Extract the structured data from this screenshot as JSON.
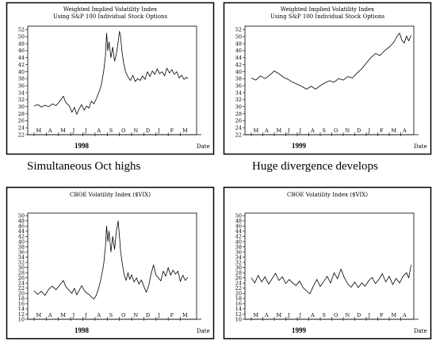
{
  "captions": {
    "left": "Simultaneous Oct highs",
    "right": "Huge divergence develops"
  },
  "chart_data": [
    {
      "type": "line",
      "title": "Weighted Implied Volatility Index",
      "subtitle": "Using S&P 100 Individual Stock Options",
      "year_label": "1998",
      "xlabel": "Date",
      "categories": [
        "M",
        "A",
        "M",
        "J",
        "J",
        "A",
        "S",
        "O",
        "N",
        "D",
        "J",
        "F",
        "M"
      ],
      "ylim": [
        22,
        53
      ],
      "yticks": [
        22,
        24,
        26,
        28,
        30,
        32,
        34,
        36,
        38,
        40,
        42,
        44,
        46,
        48,
        50,
        52
      ],
      "series": [
        {
          "values": [
            [
              0.0,
              30.2
            ],
            [
              0.3,
              30.6
            ],
            [
              0.6,
              29.9
            ],
            [
              0.9,
              30.4
            ],
            [
              1.2,
              30.0
            ],
            [
              1.5,
              30.8
            ],
            [
              1.8,
              30.3
            ],
            [
              2.1,
              31.5
            ],
            [
              2.4,
              33.0
            ],
            [
              2.6,
              31.2
            ],
            [
              2.9,
              30.2
            ],
            [
              3.1,
              28.4
            ],
            [
              3.3,
              29.8
            ],
            [
              3.5,
              27.8
            ],
            [
              3.7,
              29.4
            ],
            [
              3.9,
              30.6
            ],
            [
              4.1,
              29.0
            ],
            [
              4.3,
              30.2
            ],
            [
              4.5,
              29.6
            ],
            [
              4.7,
              31.6
            ],
            [
              4.9,
              30.8
            ],
            [
              5.1,
              32.2
            ],
            [
              5.3,
              34.0
            ],
            [
              5.5,
              36.0
            ],
            [
              5.7,
              40.0
            ],
            [
              5.85,
              44.5
            ],
            [
              5.95,
              51.0
            ],
            [
              6.05,
              46.0
            ],
            [
              6.15,
              48.5
            ],
            [
              6.3,
              44.0
            ],
            [
              6.45,
              47.0
            ],
            [
              6.6,
              43.0
            ],
            [
              6.75,
              45.0
            ],
            [
              6.9,
              48.5
            ],
            [
              7.0,
              51.5
            ],
            [
              7.1,
              50.0
            ],
            [
              7.2,
              46.0
            ],
            [
              7.35,
              42.5
            ],
            [
              7.5,
              40.0
            ],
            [
              7.7,
              38.5
            ],
            [
              7.9,
              37.5
            ],
            [
              8.1,
              39.0
            ],
            [
              8.3,
              37.2
            ],
            [
              8.5,
              38.0
            ],
            [
              8.7,
              37.5
            ],
            [
              8.9,
              38.8
            ],
            [
              9.1,
              37.8
            ],
            [
              9.3,
              40.0
            ],
            [
              9.5,
              38.6
            ],
            [
              9.7,
              40.2
            ],
            [
              9.9,
              39.2
            ],
            [
              10.1,
              40.8
            ],
            [
              10.3,
              39.4
            ],
            [
              10.5,
              40.0
            ],
            [
              10.7,
              38.8
            ],
            [
              10.9,
              41.0
            ],
            [
              11.1,
              39.6
            ],
            [
              11.3,
              40.6
            ],
            [
              11.5,
              39.2
            ],
            [
              11.7,
              40.0
            ],
            [
              11.9,
              38.2
            ],
            [
              12.1,
              39.0
            ],
            [
              12.3,
              37.8
            ],
            [
              12.5,
              38.4
            ],
            [
              12.6,
              38.0
            ]
          ]
        }
      ]
    },
    {
      "type": "line",
      "title": "Weighted Implied Volatility Index",
      "subtitle": "Using S&P 100 Individual Stock Options",
      "year_label": "1999",
      "xlabel": "Date",
      "categories": [
        "M",
        "A",
        "M",
        "J",
        "J",
        "A",
        "S",
        "O",
        "N",
        "D",
        "J",
        "F",
        "M",
        "A"
      ],
      "ylim": [
        22,
        53
      ],
      "yticks": [
        22,
        24,
        26,
        28,
        30,
        32,
        34,
        36,
        38,
        40,
        42,
        44,
        46,
        48,
        50,
        52
      ],
      "series": [
        {
          "values": [
            [
              0.0,
              38.2
            ],
            [
              0.4,
              37.6
            ],
            [
              0.8,
              38.8
            ],
            [
              1.2,
              38.0
            ],
            [
              1.6,
              39.0
            ],
            [
              2.0,
              40.2
            ],
            [
              2.4,
              39.4
            ],
            [
              2.8,
              38.4
            ],
            [
              3.2,
              37.8
            ],
            [
              3.6,
              37.0
            ],
            [
              4.0,
              36.4
            ],
            [
              4.4,
              35.8
            ],
            [
              4.8,
              35.0
            ],
            [
              5.2,
              35.8
            ],
            [
              5.6,
              35.0
            ],
            [
              6.0,
              36.0
            ],
            [
              6.4,
              36.8
            ],
            [
              6.8,
              37.4
            ],
            [
              7.2,
              37.0
            ],
            [
              7.6,
              38.0
            ],
            [
              8.0,
              37.6
            ],
            [
              8.4,
              38.6
            ],
            [
              8.8,
              38.2
            ],
            [
              9.2,
              39.6
            ],
            [
              9.6,
              40.8
            ],
            [
              10.0,
              42.4
            ],
            [
              10.4,
              44.0
            ],
            [
              10.8,
              45.2
            ],
            [
              11.2,
              44.6
            ],
            [
              11.6,
              46.0
            ],
            [
              12.0,
              47.0
            ],
            [
              12.4,
              48.4
            ],
            [
              12.7,
              50.2
            ],
            [
              12.9,
              51.0
            ],
            [
              13.1,
              49.0
            ],
            [
              13.3,
              48.2
            ],
            [
              13.5,
              50.2
            ],
            [
              13.7,
              48.8
            ],
            [
              13.9,
              50.4
            ]
          ]
        }
      ]
    },
    {
      "type": "line",
      "title": "CBOE Volatility Index ($VIX)",
      "year_label": "1998",
      "xlabel": "Date",
      "categories": [
        "M",
        "A",
        "M",
        "J",
        "J",
        "A",
        "S",
        "O",
        "N",
        "D",
        "J",
        "F",
        "M"
      ],
      "ylim": [
        10,
        51
      ],
      "yticks": [
        10,
        12,
        14,
        16,
        18,
        20,
        22,
        24,
        26,
        28,
        30,
        32,
        34,
        36,
        38,
        40,
        42,
        44,
        46,
        48,
        50
      ],
      "series": [
        {
          "values": [
            [
              0.0,
              21.0
            ],
            [
              0.3,
              19.6
            ],
            [
              0.6,
              20.8
            ],
            [
              0.9,
              19.2
            ],
            [
              1.2,
              21.6
            ],
            [
              1.5,
              22.8
            ],
            [
              1.8,
              21.4
            ],
            [
              2.1,
              23.2
            ],
            [
              2.4,
              25.0
            ],
            [
              2.6,
              22.6
            ],
            [
              2.9,
              21.0
            ],
            [
              3.1,
              20.0
            ],
            [
              3.3,
              22.0
            ],
            [
              3.5,
              19.4
            ],
            [
              3.7,
              21.2
            ],
            [
              3.9,
              23.0
            ],
            [
              4.1,
              21.2
            ],
            [
              4.3,
              20.2
            ],
            [
              4.5,
              19.6
            ],
            [
              4.7,
              18.6
            ],
            [
              4.9,
              17.8
            ],
            [
              5.1,
              19.2
            ],
            [
              5.3,
              22.0
            ],
            [
              5.5,
              26.0
            ],
            [
              5.7,
              31.0
            ],
            [
              5.85,
              38.0
            ],
            [
              5.95,
              46.0
            ],
            [
              6.05,
              40.0
            ],
            [
              6.15,
              44.0
            ],
            [
              6.3,
              36.0
            ],
            [
              6.45,
              42.0
            ],
            [
              6.6,
              37.0
            ],
            [
              6.75,
              44.0
            ],
            [
              6.9,
              48.0
            ],
            [
              7.0,
              42.0
            ],
            [
              7.1,
              36.0
            ],
            [
              7.25,
              31.0
            ],
            [
              7.4,
              27.0
            ],
            [
              7.55,
              25.0
            ],
            [
              7.7,
              28.0
            ],
            [
              7.85,
              25.4
            ],
            [
              8.0,
              27.2
            ],
            [
              8.2,
              24.4
            ],
            [
              8.4,
              26.0
            ],
            [
              8.6,
              23.6
            ],
            [
              8.8,
              25.2
            ],
            [
              9.0,
              22.8
            ],
            [
              9.2,
              20.4
            ],
            [
              9.4,
              23.0
            ],
            [
              9.6,
              27.6
            ],
            [
              9.8,
              31.0
            ],
            [
              10.0,
              27.0
            ],
            [
              10.2,
              26.0
            ],
            [
              10.4,
              24.8
            ],
            [
              10.6,
              28.6
            ],
            [
              10.8,
              26.6
            ],
            [
              11.0,
              30.0
            ],
            [
              11.2,
              27.0
            ],
            [
              11.4,
              29.0
            ],
            [
              11.6,
              27.4
            ],
            [
              11.8,
              28.6
            ],
            [
              12.0,
              24.6
            ],
            [
              12.2,
              27.0
            ],
            [
              12.4,
              25.0
            ],
            [
              12.6,
              26.2
            ]
          ]
        }
      ]
    },
    {
      "type": "line",
      "title": "CBOE Volatility Index ($VIX)",
      "year_label": "1999",
      "xlabel": "Date",
      "categories": [
        "M",
        "A",
        "M",
        "J",
        "J",
        "A",
        "S",
        "O",
        "N",
        "D",
        "J",
        "F",
        "M",
        "A"
      ],
      "ylim": [
        10,
        51
      ],
      "yticks": [
        10,
        12,
        14,
        16,
        18,
        20,
        22,
        24,
        26,
        28,
        30,
        32,
        34,
        36,
        38,
        40,
        42,
        44,
        46,
        48,
        50
      ],
      "series": [
        {
          "values": [
            [
              0.0,
              26.0
            ],
            [
              0.3,
              24.0
            ],
            [
              0.6,
              27.0
            ],
            [
              0.9,
              24.4
            ],
            [
              1.2,
              26.4
            ],
            [
              1.5,
              23.6
            ],
            [
              1.8,
              25.6
            ],
            [
              2.1,
              27.8
            ],
            [
              2.4,
              25.0
            ],
            [
              2.7,
              26.4
            ],
            [
              3.0,
              23.8
            ],
            [
              3.3,
              25.4
            ],
            [
              3.6,
              24.0
            ],
            [
              3.9,
              23.0
            ],
            [
              4.2,
              24.8
            ],
            [
              4.5,
              22.2
            ],
            [
              4.8,
              21.0
            ],
            [
              5.1,
              19.8
            ],
            [
              5.4,
              22.8
            ],
            [
              5.7,
              25.4
            ],
            [
              6.0,
              22.6
            ],
            [
              6.3,
              24.6
            ],
            [
              6.6,
              26.6
            ],
            [
              6.9,
              24.0
            ],
            [
              7.2,
              28.0
            ],
            [
              7.5,
              25.6
            ],
            [
              7.8,
              29.4
            ],
            [
              8.1,
              26.0
            ],
            [
              8.4,
              23.6
            ],
            [
              8.7,
              22.4
            ],
            [
              9.0,
              24.4
            ],
            [
              9.3,
              22.2
            ],
            [
              9.6,
              24.0
            ],
            [
              9.9,
              22.8
            ],
            [
              10.2,
              24.8
            ],
            [
              10.5,
              26.2
            ],
            [
              10.8,
              23.8
            ],
            [
              11.1,
              25.4
            ],
            [
              11.4,
              27.6
            ],
            [
              11.7,
              24.4
            ],
            [
              12.0,
              26.6
            ],
            [
              12.3,
              23.4
            ],
            [
              12.6,
              25.8
            ],
            [
              12.9,
              24.0
            ],
            [
              13.2,
              26.6
            ],
            [
              13.5,
              28.0
            ],
            [
              13.7,
              26.0
            ],
            [
              13.9,
              31.0
            ]
          ]
        }
      ]
    }
  ]
}
